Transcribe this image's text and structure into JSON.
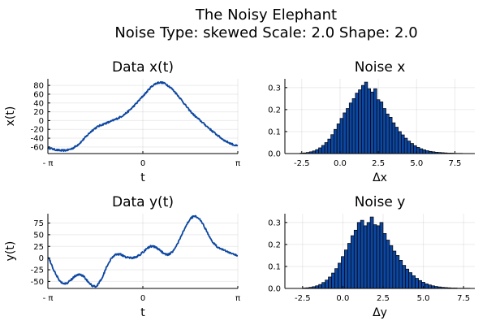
{
  "title_line1": "The Noisy Elephant",
  "title_line2": "Noise Type: skewed Scale: 2.0 Shape: 2.0",
  "colors": {
    "line": "#0d47a1",
    "bar_fill": "#0d47a1",
    "bar_edge": "#000000",
    "grid": "#e6e6e6"
  },
  "chart_data": [
    {
      "id": "data_x",
      "type": "line",
      "title": "Data x(t)",
      "xlabel": "t",
      "ylabel": "x(t)",
      "xlim": [
        -3.1416,
        3.1416
      ],
      "ylim": [
        -75,
        95
      ],
      "xticks": [
        -3.1416,
        0,
        3.1416
      ],
      "xtick_labels": [
        "- π",
        "0",
        "π"
      ],
      "yticks": [
        -60,
        -40,
        -20,
        0,
        20,
        40,
        60,
        80
      ],
      "ytick_labels": [
        "-60",
        "-40",
        "-20",
        "0",
        "20",
        "40",
        "60",
        "80"
      ],
      "grid": true,
      "noise": 2.0,
      "x": [
        -3.1416,
        -2.9,
        -2.7,
        -2.5,
        -2.3,
        -2.1,
        -1.9,
        -1.7,
        -1.5,
        -1.3,
        -1.1,
        -0.9,
        -0.7,
        -0.5,
        -0.3,
        -0.1,
        0.1,
        0.3,
        0.5,
        0.7,
        0.9,
        1.1,
        1.3,
        1.5,
        1.7,
        1.9,
        2.1,
        2.3,
        2.5,
        2.7,
        2.9,
        3.1416
      ],
      "y": [
        -62,
        -66,
        -68,
        -67,
        -62,
        -52,
        -38,
        -24,
        -14,
        -8,
        -3,
        3,
        10,
        20,
        33,
        48,
        63,
        78,
        86,
        85,
        76,
        62,
        45,
        27,
        12,
        0,
        -12,
        -24,
        -35,
        -45,
        -52,
        -58
      ]
    },
    {
      "id": "noise_x",
      "type": "bar",
      "title": "Noise x",
      "xlabel": "Δx",
      "ylabel": "",
      "xlim": [
        -3.6,
        8.8
      ],
      "ylim": [
        0,
        0.34
      ],
      "xticks": [
        -2.5,
        0,
        2.5,
        5,
        7.5
      ],
      "xtick_labels": [
        "-2.5",
        "0.0",
        "2.5",
        "5.0",
        "7.5"
      ],
      "yticks": [
        0,
        0.1,
        0.2,
        0.3
      ],
      "ytick_labels": [
        "0.0",
        "0.1",
        "0.2",
        "0.3"
      ],
      "grid": true,
      "bin_start": -2.6,
      "bin_width": 0.2,
      "values": [
        0.002,
        0.003,
        0.005,
        0.008,
        0.012,
        0.018,
        0.026,
        0.037,
        0.05,
        0.066,
        0.086,
        0.11,
        0.135,
        0.16,
        0.185,
        0.205,
        0.23,
        0.25,
        0.275,
        0.29,
        0.31,
        0.325,
        0.295,
        0.28,
        0.295,
        0.245,
        0.235,
        0.205,
        0.18,
        0.165,
        0.14,
        0.12,
        0.1,
        0.085,
        0.07,
        0.057,
        0.046,
        0.036,
        0.028,
        0.022,
        0.017,
        0.013,
        0.01,
        0.008,
        0.006,
        0.005,
        0.004,
        0.003,
        0.002,
        0.002,
        0.001,
        0.001,
        0.001
      ]
    },
    {
      "id": "data_y",
      "type": "line",
      "title": "Data y(t)",
      "xlabel": "t",
      "ylabel": "y(t)",
      "xlim": [
        -3.1416,
        3.1416
      ],
      "ylim": [
        -65,
        95
      ],
      "xticks": [
        -3.1416,
        0,
        3.1416
      ],
      "xtick_labels": [
        "- π",
        "0",
        "π"
      ],
      "yticks": [
        -50,
        -25,
        0,
        25,
        50,
        75
      ],
      "ytick_labels": [
        "-50",
        "-25",
        "0",
        "25",
        "50",
        "75"
      ],
      "grid": true,
      "noise": 2.0,
      "x": [
        -3.1416,
        -2.95,
        -2.75,
        -2.55,
        -2.35,
        -2.15,
        -1.95,
        -1.75,
        -1.55,
        -1.35,
        -1.15,
        -0.95,
        -0.75,
        -0.55,
        -0.35,
        -0.15,
        0.05,
        0.25,
        0.45,
        0.65,
        0.85,
        1.05,
        1.25,
        1.45,
        1.65,
        1.85,
        2.05,
        2.25,
        2.45,
        2.65,
        2.85,
        3.1416
      ],
      "y": [
        3,
        -25,
        -48,
        -55,
        -45,
        -35,
        -40,
        -55,
        -60,
        -42,
        -12,
        5,
        8,
        2,
        0,
        5,
        15,
        25,
        22,
        12,
        8,
        20,
        45,
        72,
        88,
        85,
        65,
        40,
        25,
        18,
        12,
        5
      ]
    },
    {
      "id": "noise_y",
      "type": "bar",
      "title": "Noise y",
      "xlabel": "Δy",
      "ylabel": "",
      "xlim": [
        -3.6,
        8.2
      ],
      "ylim": [
        0,
        0.34
      ],
      "xticks": [
        -2.5,
        0,
        2.5,
        5,
        7.5
      ],
      "xtick_labels": [
        "-2.5",
        "0.0",
        "2.5",
        "5.0",
        "7.5"
      ],
      "yticks": [
        0,
        0.1,
        0.2,
        0.3
      ],
      "ytick_labels": [
        "0.0",
        "0.1",
        "0.2",
        "0.3"
      ],
      "grid": true,
      "bin_start": -2.5,
      "bin_width": 0.2,
      "values": [
        0.002,
        0.003,
        0.005,
        0.008,
        0.012,
        0.018,
        0.027,
        0.038,
        0.052,
        0.07,
        0.09,
        0.115,
        0.145,
        0.175,
        0.205,
        0.24,
        0.265,
        0.3,
        0.31,
        0.285,
        0.3,
        0.325,
        0.29,
        0.285,
        0.3,
        0.25,
        0.22,
        0.195,
        0.17,
        0.15,
        0.128,
        0.105,
        0.088,
        0.072,
        0.058,
        0.046,
        0.036,
        0.028,
        0.021,
        0.016,
        0.012,
        0.009,
        0.007,
        0.005,
        0.004,
        0.003,
        0.002,
        0.002,
        0.001,
        0.001,
        0.001,
        0.001
      ]
    }
  ]
}
